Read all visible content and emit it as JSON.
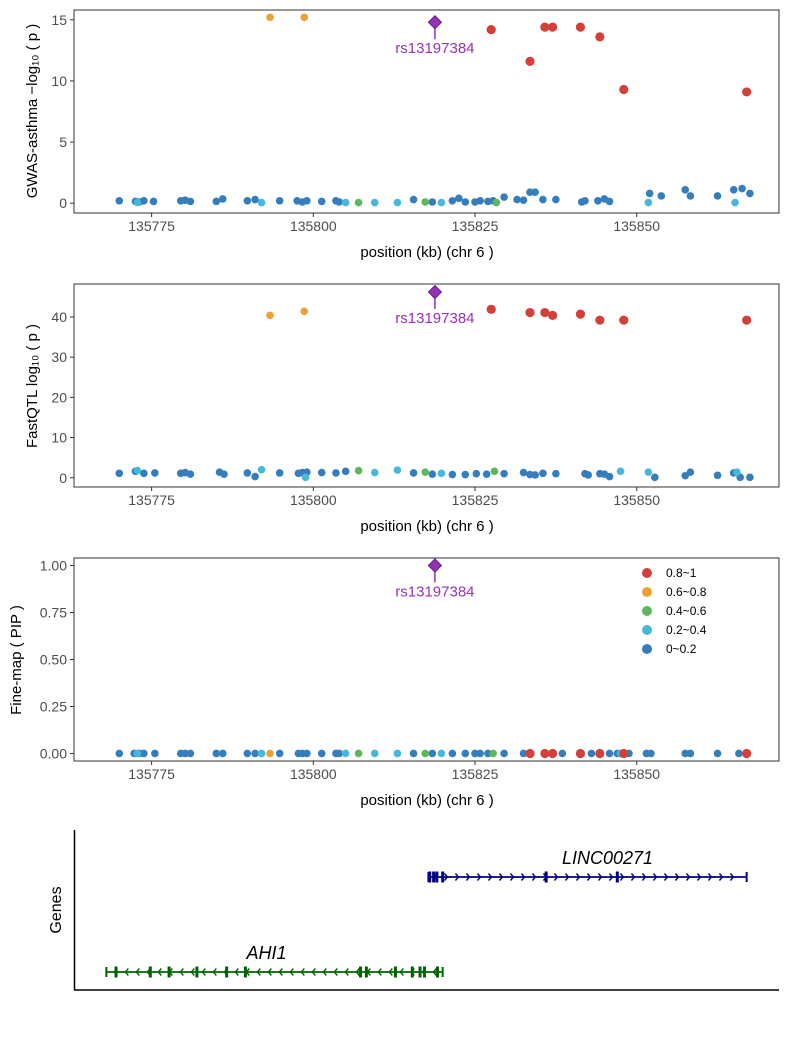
{
  "colors": {
    "0.8~1": "#d43f3a",
    "0.6~0.8": "#eea236",
    "0.4~0.6": "#5cb85c",
    "0.2~0.4": "#46b8da",
    "0~0.2": "#357ebd",
    "lead": "#9632b8",
    "gene_plus": "#000080",
    "gene_minus": "#006400"
  },
  "chart_data": [
    {
      "type": "scatter",
      "panel": "gwas",
      "ylabel": "GWAS-asthma −log₁₀ ( p )",
      "xlabel": "position (kb) (chr 6 )",
      "xlim": [
        135763,
        135872
      ],
      "ylim": [
        -0.8,
        15.8
      ],
      "xticks": [
        "135775",
        "135800",
        "135825",
        "135850"
      ],
      "yticks": [
        "0",
        "5",
        "10",
        "15"
      ],
      "ytick_values": [
        0,
        5,
        10,
        15
      ],
      "lead_snp": {
        "label": "rs13197384",
        "x": 135818.8,
        "y": 14.8
      },
      "points": [
        [
          135793.3,
          15.2,
          "0.6~0.8"
        ],
        [
          135798.6,
          15.2,
          "0.6~0.8"
        ],
        [
          135827.5,
          14.2,
          "0.8~1"
        ],
        [
          135833.5,
          11.6,
          "0.8~1"
        ],
        [
          135835.8,
          14.4,
          "0.8~1"
        ],
        [
          135837.0,
          14.4,
          "0.8~1"
        ],
        [
          135841.3,
          14.4,
          "0.8~1"
        ],
        [
          135844.3,
          13.6,
          "0.8~1"
        ],
        [
          135848.0,
          9.3,
          "0.8~1"
        ],
        [
          135867.0,
          9.1,
          "0.8~1"
        ],
        [
          135770.0,
          0.2,
          "0~0.2"
        ],
        [
          135772.5,
          0.15,
          "0~0.2"
        ],
        [
          135773.1,
          0.1,
          "0~0.2"
        ],
        [
          135773.8,
          0.2,
          "0~0.2"
        ],
        [
          135775.3,
          0.15,
          "0~0.2"
        ],
        [
          135779.5,
          0.2,
          "0~0.2"
        ],
        [
          135780.2,
          0.25,
          "0~0.2"
        ],
        [
          135781.0,
          0.15,
          "0~0.2"
        ],
        [
          135785.0,
          0.15,
          "0~0.2"
        ],
        [
          135786.0,
          0.35,
          "0~0.2"
        ],
        [
          135789.8,
          0.2,
          "0~0.2"
        ],
        [
          135791.0,
          0.3,
          "0~0.2"
        ],
        [
          135794.8,
          0.2,
          "0~0.2"
        ],
        [
          135797.5,
          0.2,
          "0~0.2"
        ],
        [
          135798.3,
          0.1,
          "0~0.2"
        ],
        [
          135799.0,
          0.2,
          "0~0.2"
        ],
        [
          135801.3,
          0.15,
          "0~0.2"
        ],
        [
          135803.5,
          0.2,
          "0~0.2"
        ],
        [
          135804.0,
          0.1,
          "0~0.2"
        ],
        [
          135815.5,
          0.3,
          "0~0.2"
        ],
        [
          135818.4,
          0.1,
          "0~0.2"
        ],
        [
          135821.5,
          0.2,
          "0~0.2"
        ],
        [
          135822.5,
          0.4,
          "0~0.2"
        ],
        [
          135823.5,
          0.1,
          "0~0.2"
        ],
        [
          135825.0,
          0.1,
          "0~0.2"
        ],
        [
          135825.8,
          0.2,
          "0~0.2"
        ],
        [
          135827.0,
          0.15,
          "0~0.2"
        ],
        [
          135827.8,
          0.2,
          "0~0.2"
        ],
        [
          135829.5,
          0.5,
          "0~0.2"
        ],
        [
          135831.5,
          0.3,
          "0~0.2"
        ],
        [
          135832.5,
          0.25,
          "0~0.2"
        ],
        [
          135833.5,
          0.9,
          "0~0.2"
        ],
        [
          135834.3,
          0.9,
          "0~0.2"
        ],
        [
          135835.5,
          0.3,
          "0~0.2"
        ],
        [
          135837.5,
          0.3,
          "0~0.2"
        ],
        [
          135841.5,
          0.1,
          "0~0.2"
        ],
        [
          135842.0,
          0.2,
          "0~0.2"
        ],
        [
          135844.0,
          0.2,
          "0~0.2"
        ],
        [
          135845.0,
          0.35,
          "0~0.2"
        ],
        [
          135845.8,
          0.15,
          "0~0.2"
        ],
        [
          135852.0,
          0.8,
          "0~0.2"
        ],
        [
          135853.8,
          0.6,
          "0~0.2"
        ],
        [
          135857.5,
          1.1,
          "0~0.2"
        ],
        [
          135858.3,
          0.6,
          "0~0.2"
        ],
        [
          135862.5,
          0.6,
          "0~0.2"
        ],
        [
          135865.0,
          1.1,
          "0~0.2"
        ],
        [
          135866.3,
          1.2,
          "0~0.2"
        ],
        [
          135867.5,
          0.8,
          "0~0.2"
        ],
        [
          135772.8,
          0.05,
          "0.2~0.4"
        ],
        [
          135792.0,
          0.05,
          "0.2~0.4"
        ],
        [
          135805.0,
          0.05,
          "0.2~0.4"
        ],
        [
          135809.5,
          0.05,
          "0.2~0.4"
        ],
        [
          135813.0,
          0.05,
          "0.2~0.4"
        ],
        [
          135819.8,
          0.05,
          "0.2~0.4"
        ],
        [
          135851.8,
          0.05,
          "0.2~0.4"
        ],
        [
          135865.2,
          0.05,
          "0.2~0.4"
        ],
        [
          135807.0,
          0.05,
          "0.4~0.6"
        ],
        [
          135817.3,
          0.1,
          "0.4~0.6"
        ],
        [
          135828.3,
          0.05,
          "0.4~0.6"
        ]
      ]
    },
    {
      "type": "scatter",
      "panel": "fastqtl",
      "ylabel": "FastQTL log₁₀ ( p )",
      "xlabel": "position (kb) (chr 6 )",
      "xlim": [
        135763,
        135872
      ],
      "ylim": [
        -2.3,
        48.2
      ],
      "xticks": [
        "135775",
        "135800",
        "135825",
        "135850"
      ],
      "yticks": [
        "0",
        "10",
        "20",
        "30",
        "40"
      ],
      "ytick_values": [
        0,
        10,
        20,
        30,
        40
      ],
      "lead_snp": {
        "label": "rs13197384",
        "x": 135818.8,
        "y": 46.2
      },
      "points": [
        [
          135793.3,
          40.4,
          "0.6~0.8"
        ],
        [
          135798.6,
          41.4,
          "0.6~0.8"
        ],
        [
          135827.5,
          41.9,
          "0.8~1"
        ],
        [
          135833.5,
          41.1,
          "0.8~1"
        ],
        [
          135835.8,
          41.1,
          "0.8~1"
        ],
        [
          135837.0,
          40.4,
          "0.8~1"
        ],
        [
          135841.3,
          40.7,
          "0.8~1"
        ],
        [
          135844.3,
          39.2,
          "0.8~1"
        ],
        [
          135848.0,
          39.2,
          "0.8~1"
        ],
        [
          135867.0,
          39.2,
          "0.8~1"
        ],
        [
          135770.0,
          1.1,
          "0~0.2"
        ],
        [
          135772.5,
          1.6,
          "0~0.2"
        ],
        [
          135773.8,
          1.1,
          "0~0.2"
        ],
        [
          135775.5,
          1.2,
          "0~0.2"
        ],
        [
          135779.5,
          1.1,
          "0~0.2"
        ],
        [
          135780.2,
          1.3,
          "0~0.2"
        ],
        [
          135781.0,
          0.9,
          "0~0.2"
        ],
        [
          135785.5,
          1.4,
          "0~0.2"
        ],
        [
          135786.2,
          0.9,
          "0~0.2"
        ],
        [
          135789.8,
          1.2,
          "0~0.2"
        ],
        [
          135791.0,
          0.3,
          "0~0.2"
        ],
        [
          135794.8,
          1.2,
          "0~0.2"
        ],
        [
          135797.7,
          1.1,
          "0~0.2"
        ],
        [
          135798.3,
          1.3,
          "0~0.2"
        ],
        [
          135799.0,
          1.4,
          "0~0.2"
        ],
        [
          135801.3,
          1.3,
          "0~0.2"
        ],
        [
          135803.5,
          1.2,
          "0~0.2"
        ],
        [
          135805.0,
          1.6,
          "0~0.2"
        ],
        [
          135815.5,
          1.2,
          "0~0.2"
        ],
        [
          135818.4,
          0.9,
          "0~0.2"
        ],
        [
          135821.5,
          0.8,
          "0~0.2"
        ],
        [
          135823.5,
          0.8,
          "0~0.2"
        ],
        [
          135825.2,
          1.0,
          "0~0.2"
        ],
        [
          135826.8,
          0.9,
          "0~0.2"
        ],
        [
          135829.5,
          1.0,
          "0~0.2"
        ],
        [
          135832.5,
          1.3,
          "0~0.2"
        ],
        [
          135833.5,
          0.8,
          "0~0.2"
        ],
        [
          135834.3,
          0.7,
          "0~0.2"
        ],
        [
          135835.5,
          1.1,
          "0~0.2"
        ],
        [
          135837.5,
          1.0,
          "0~0.2"
        ],
        [
          135842.0,
          1.0,
          "0~0.2"
        ],
        [
          135842.5,
          0.7,
          "0~0.2"
        ],
        [
          135844.3,
          1.0,
          "0~0.2"
        ],
        [
          135845.0,
          0.9,
          "0~0.2"
        ],
        [
          135845.8,
          0.3,
          "0~0.2"
        ],
        [
          135852.8,
          0.1,
          "0~0.2"
        ],
        [
          135857.5,
          0.5,
          "0~0.2"
        ],
        [
          135858.3,
          1.4,
          "0~0.2"
        ],
        [
          135862.5,
          0.6,
          "0~0.2"
        ],
        [
          135865.0,
          1.2,
          "0~0.2"
        ],
        [
          135866.0,
          0.1,
          "0~0.2"
        ],
        [
          135867.5,
          0.1,
          "0~0.2"
        ],
        [
          135772.8,
          1.8,
          "0.2~0.4"
        ],
        [
          135792.0,
          2.0,
          "0.2~0.4"
        ],
        [
          135798.8,
          0.1,
          "0.2~0.4"
        ],
        [
          135809.5,
          1.3,
          "0.2~0.4"
        ],
        [
          135813.0,
          1.9,
          "0.2~0.4"
        ],
        [
          135819.8,
          1.1,
          "0.2~0.4"
        ],
        [
          135847.5,
          1.6,
          "0.2~0.4"
        ],
        [
          135851.8,
          1.4,
          "0.2~0.4"
        ],
        [
          135865.5,
          1.4,
          "0.2~0.4"
        ],
        [
          135807.0,
          1.8,
          "0.4~0.6"
        ],
        [
          135817.3,
          1.4,
          "0.4~0.6"
        ],
        [
          135828.0,
          1.6,
          "0.4~0.6"
        ]
      ]
    },
    {
      "type": "scatter",
      "panel": "finemap",
      "ylabel": "Fine-map ( PIP )",
      "xlabel": "position (kb) (chr 6 )",
      "xlim": [
        135763,
        135872
      ],
      "ylim": [
        -0.04,
        1.04
      ],
      "xticks": [
        "135775",
        "135800",
        "135825",
        "135850"
      ],
      "yticks": [
        "0.00",
        "0.25",
        "0.50",
        "0.75",
        "1.00"
      ],
      "ytick_values": [
        0,
        0.25,
        0.5,
        0.75,
        1
      ],
      "lead_snp": {
        "label": "rs13197384",
        "x": 135818.8,
        "y": 1.0
      },
      "legend": {
        "placement": "top-right",
        "items": [
          "0.8~1",
          "0.6~0.8",
          "0.4~0.6",
          "0.2~0.4",
          "0~0.2"
        ]
      },
      "points": [
        [
          135770.0,
          0,
          "0~0.2"
        ],
        [
          135772.3,
          0,
          "0~0.2"
        ],
        [
          135773.1,
          0,
          "0~0.2"
        ],
        [
          135773.8,
          0,
          "0~0.2"
        ],
        [
          135775.5,
          0,
          "0~0.2"
        ],
        [
          135779.5,
          0,
          "0~0.2"
        ],
        [
          135780.2,
          0,
          "0~0.2"
        ],
        [
          135781.0,
          0,
          "0~0.2"
        ],
        [
          135785.0,
          0,
          "0~0.2"
        ],
        [
          135786.0,
          0,
          "0~0.2"
        ],
        [
          135789.8,
          0,
          "0~0.2"
        ],
        [
          135791.0,
          0,
          "0~0.2"
        ],
        [
          135794.8,
          0,
          "0~0.2"
        ],
        [
          135797.7,
          0,
          "0~0.2"
        ],
        [
          135798.3,
          0,
          "0~0.2"
        ],
        [
          135799.0,
          0,
          "0~0.2"
        ],
        [
          135801.3,
          0,
          "0~0.2"
        ],
        [
          135803.5,
          0,
          "0~0.2"
        ],
        [
          135804.0,
          0,
          "0~0.2"
        ],
        [
          135815.5,
          0,
          "0~0.2"
        ],
        [
          135818.4,
          0,
          "0~0.2"
        ],
        [
          135821.5,
          0,
          "0~0.2"
        ],
        [
          135823.5,
          0,
          "0~0.2"
        ],
        [
          135825.0,
          0,
          "0~0.2"
        ],
        [
          135825.8,
          0,
          "0~0.2"
        ],
        [
          135827.0,
          0,
          "0~0.2"
        ],
        [
          135829.5,
          0,
          "0~0.2"
        ],
        [
          135832.5,
          0,
          "0~0.2"
        ],
        [
          135838.5,
          0,
          "0~0.2"
        ],
        [
          135843.0,
          0,
          "0~0.2"
        ],
        [
          135845.8,
          0,
          "0~0.2"
        ],
        [
          135847.0,
          0,
          "0~0.2"
        ],
        [
          135848.8,
          0,
          "0~0.2"
        ],
        [
          135851.5,
          0,
          "0~0.2"
        ],
        [
          135852.2,
          0,
          "0~0.2"
        ],
        [
          135857.5,
          0,
          "0~0.2"
        ],
        [
          135858.3,
          0,
          "0~0.2"
        ],
        [
          135862.5,
          0,
          "0~0.2"
        ],
        [
          135865.8,
          0,
          "0~0.2"
        ],
        [
          135772.8,
          0,
          "0.2~0.4"
        ],
        [
          135792.0,
          0,
          "0.2~0.4"
        ],
        [
          135805.0,
          0,
          "0.2~0.4"
        ],
        [
          135809.5,
          0,
          "0.2~0.4"
        ],
        [
          135813.0,
          0,
          "0.2~0.4"
        ],
        [
          135819.8,
          0,
          "0.2~0.4"
        ],
        [
          135847.5,
          0,
          "0.2~0.4"
        ],
        [
          135807.0,
          0,
          "0.4~0.6"
        ],
        [
          135817.3,
          0,
          "0.4~0.6"
        ],
        [
          135827.8,
          0,
          "0.4~0.6"
        ],
        [
          135793.3,
          0,
          "0.6~0.8"
        ],
        [
          135833.5,
          0,
          "0.8~1"
        ],
        [
          135835.8,
          0,
          "0.8~1"
        ],
        [
          135837.0,
          0,
          "0.8~1"
        ],
        [
          135841.3,
          0,
          "0.8~1"
        ],
        [
          135844.3,
          0,
          "0.8~1"
        ],
        [
          135848.0,
          0,
          "0.8~1"
        ],
        [
          135867.0,
          0,
          "0.8~1"
        ]
      ]
    },
    {
      "type": "gene-track",
      "panel": "genes",
      "ylabel": "Genes",
      "genes": [
        {
          "name": "LINC00271",
          "strand": "+",
          "start": 135817.8,
          "end": 135867.0,
          "exons": [
            135818.0,
            135818.6,
            135819.1,
            135820.0,
            135836.0,
            135847.0
          ]
        },
        {
          "name": "AHI1",
          "strand": "-",
          "start": 135768.0,
          "end": 135820.0,
          "exons": [
            135769.5,
            135774.8,
            135777.7,
            135782.0,
            135786.6,
            135789.5,
            135807.3,
            135808.2,
            135812.7,
            135815.3,
            135816.5,
            135817.2,
            135819.2
          ]
        }
      ]
    }
  ]
}
